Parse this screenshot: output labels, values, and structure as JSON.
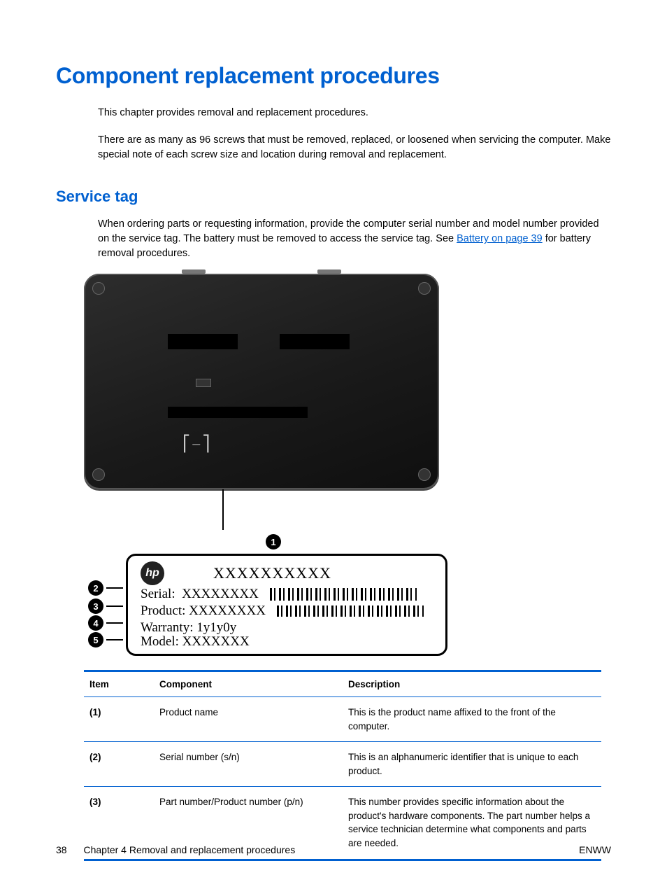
{
  "colors": {
    "accent": "#0060d0",
    "text": "#000000",
    "background": "#ffffff"
  },
  "heading": "Component replacement procedures",
  "para1": "This chapter provides removal and replacement procedures.",
  "para2": "There are as many as 96 screws that must be removed, replaced, or loosened when servicing the computer. Make special note of each screw size and location during removal and replacement.",
  "subheading": "Service tag",
  "para3_a": "When ordering parts or requesting information, provide the computer serial number and model number provided on the service tag. The battery must be removed to access the service tag. See ",
  "para3_link": "Battery on page 39",
  "para3_b": " for battery removal procedures.",
  "diagram": {
    "bracket_glyph": "⎡⎯⎤",
    "callouts": [
      "1",
      "2",
      "3",
      "4",
      "5"
    ],
    "tag": {
      "logo_text": "hp",
      "title": "XXXXXXXXXX",
      "lines": {
        "serial_label": "Serial:",
        "serial_value": "XXXXXXXX",
        "product_label": "Product:",
        "product_value": "XXXXXXXX",
        "warranty_label": "Warranty:",
        "warranty_value": "1y1y0y",
        "model_label": "Model:",
        "model_value": "XXXXXXX"
      }
    }
  },
  "table": {
    "headers": {
      "item": "Item",
      "component": "Component",
      "description": "Description"
    },
    "rows": [
      {
        "item": "(1)",
        "component": "Product name",
        "description": "This is the product name affixed to the front of the computer."
      },
      {
        "item": "(2)",
        "component": "Serial number (s/n)",
        "description": "This is an alphanumeric identifier that is unique to each product."
      },
      {
        "item": "(3)",
        "component": "Part number/Product number (p/n)",
        "description": "This number provides specific information about the product's hardware components. The part number helps a service technician determine what components and parts are needed."
      }
    ]
  },
  "footer": {
    "page_number": "38",
    "chapter": "Chapter 4   Removal and replacement procedures",
    "lang": "ENWW"
  }
}
